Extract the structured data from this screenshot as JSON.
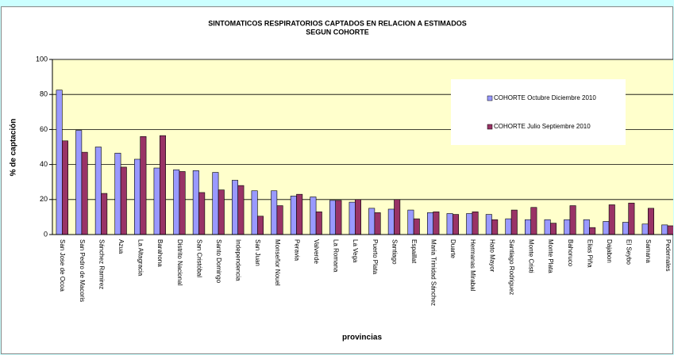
{
  "chart_data": {
    "type": "bar",
    "title": [
      "SINTOMATICOS  RESPIRATORIOS  CAPTADOS EN RELACION A ESTIMADOS",
      "SEGUN COHORTE"
    ],
    "y_label": "% de captación",
    "x_label": "provincias",
    "categories": [
      "San Jose de Ocoa",
      "San Pedro de Macoris",
      "Sánchez Ramirez",
      "Azua",
      "La Altagracia",
      "Barahona",
      "Distrito Nacional",
      "San Cristóbal",
      "Santo Domingo",
      "Independencia",
      "San Juan",
      "Monseñor Nouel",
      "Peravia",
      "Valverde",
      "La Romana",
      "La Vega",
      "Puerto Plata",
      "Santiago",
      "Espaillat",
      "Maria Trinidad Sánchez",
      "Duarte",
      "Hermanas Mirabal",
      "Hato Mayor",
      "Santiago Rodriguez",
      "Monte Cristi",
      "Monte Plata",
      "Bahoruco",
      "Elias Piña",
      "Dajabon",
      "El Seybo",
      "Samana",
      "Pedernales"
    ],
    "series": [
      {
        "name": "COHORTE Octubre Diciembre 2010",
        "color": "#9999ff",
        "values": [
          82.5,
          59.5,
          50,
          46.5,
          43,
          38,
          37,
          36.5,
          35.5,
          31,
          25,
          25,
          22,
          21.5,
          19.5,
          18.5,
          15,
          14.5,
          14,
          12.5,
          12,
          12,
          11.5,
          9,
          8.5,
          8.5,
          8.5,
          8.5,
          7.5,
          7,
          6,
          5.5
        ]
      },
      {
        "name": "COHORTE Julio Septiembre  2010",
        "color": "#993366",
        "values": [
          53.5,
          47,
          23.5,
          38.5,
          56,
          56.5,
          36,
          24,
          25.5,
          28,
          10.5,
          16.5,
          23,
          13,
          19.5,
          20,
          12.5,
          20,
          9,
          13,
          11.5,
          13,
          8.5,
          14,
          15.5,
          6.5,
          16.5,
          4,
          17,
          18,
          15,
          5
        ]
      }
    ],
    "ylim": [
      0,
      100
    ],
    "yticks": [
      0,
      20,
      40,
      60,
      80,
      100
    ],
    "grid": true
  }
}
